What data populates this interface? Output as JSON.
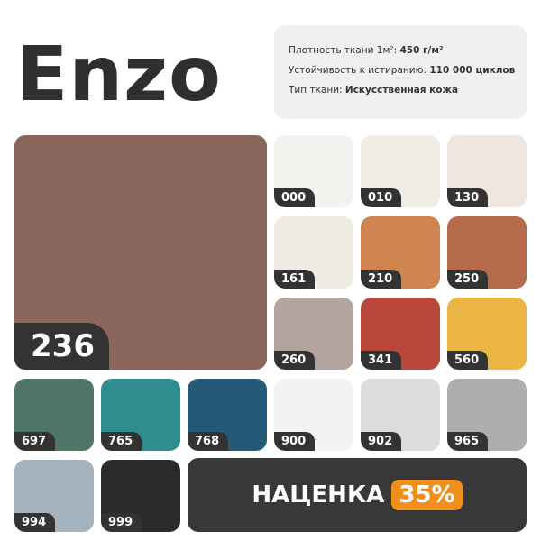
{
  "title": "Enzo",
  "specs": {
    "density_label": "Плотность ткани 1м²:",
    "density_value": "450 г/м²",
    "abrasion_label": "Устойчивость к истиранию:",
    "abrasion_value": "110 000 циклов",
    "type_label": "Тип ткани:",
    "type_value": "Искусственная кожа"
  },
  "featured": {
    "code": "236",
    "color": "#8a665c"
  },
  "swatches": [
    {
      "code": "000",
      "color": "#f3f2ef"
    },
    {
      "code": "010",
      "color": "#f1ebe6"
    },
    {
      "code": "130",
      "color": "#efe6dd"
    },
    {
      "code": "161",
      "color": "#efebe2"
    },
    {
      "code": "210",
      "color": "#cf8550"
    },
    {
      "code": "250",
      "color": "#b66a4c"
    },
    {
      "code": "260",
      "color": "#b3a49d"
    },
    {
      "code": "341",
      "color": "#b8473c"
    },
    {
      "code": "560",
      "color": "#ebb544"
    },
    {
      "code": "697",
      "color": "#4f7566"
    },
    {
      "code": "765",
      "color": "#2f8d8f"
    },
    {
      "code": "768",
      "color": "#245a78"
    },
    {
      "code": "900",
      "color": "#f2f2f2"
    },
    {
      "code": "902",
      "color": "#dcdcdc"
    },
    {
      "code": "965",
      "color": "#adaeb0"
    },
    {
      "code": "994",
      "color": "#a5b3be"
    },
    {
      "code": "999",
      "color": "#2a2b2d"
    }
  ],
  "promo": {
    "label": "НАЦЕНКА",
    "percent": "35%",
    "accent": "#f0901a"
  }
}
